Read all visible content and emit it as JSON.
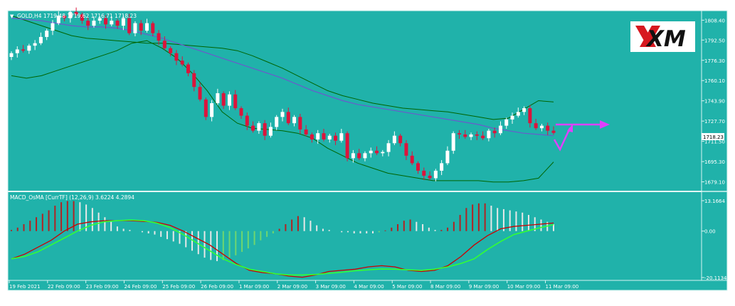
{
  "main_panel": {
    "header": "GOLD,H4  1719.48 1719.62 1716.71 1718.23",
    "y_ticks": [
      "1808.40",
      "1792.50",
      "1776.30",
      "1760.10",
      "1743.90",
      "1727.70",
      "1711.50",
      "1695.30",
      "1679.10"
    ],
    "price_tag": "1718.23"
  },
  "indicator_panel": {
    "header": "MACD_OsMA [CurrTF] (12,26,9) 3.6224 4.2894",
    "y_ticks": [
      "13.1664",
      "0.00",
      "-20.1134"
    ]
  },
  "x_ticks": [
    "19 Feb 2021",
    "22 Feb 09:00",
    "23 Feb 09:00",
    "24 Feb 09:00",
    "25 Feb 09:00",
    "26 Feb 09:00",
    "1 Mar 09:00",
    "2 Mar 09:00",
    "3 Mar 09:00",
    "4 Mar 09:00",
    "5 Mar 09:00",
    "8 Mar 09:00",
    "9 Mar 09:00",
    "10 Mar 09:00",
    "11 Mar 09:00"
  ],
  "logo": {
    "text": "XM",
    "colors": {
      "x_mark": "#d71920",
      "text": "#111111"
    }
  },
  "colors": {
    "background": "#20b2aa",
    "bull_candle": "#ffffff",
    "bear_candle": "#dc143c",
    "bollinger": "#006400",
    "moving_average": "#6a5acd",
    "macd_line": "#cc0000",
    "signal_line": "#33ff33",
    "forecast_arrow": "#e040fb"
  },
  "chart_data": [
    {
      "type": "candlestick",
      "symbol": "GOLD",
      "timeframe": "H4",
      "last": {
        "open": 1719.48,
        "high": 1719.62,
        "low": 1716.71,
        "close": 1718.23
      },
      "ylim": [
        1672,
        1816
      ],
      "x": [
        "19 Feb 2021",
        "22 Feb 09:00",
        "23 Feb 09:00",
        "24 Feb 09:00",
        "25 Feb 09:00",
        "26 Feb 09:00",
        "1 Mar 09:00",
        "2 Mar 09:00",
        "3 Mar 09:00",
        "4 Mar 09:00",
        "5 Mar 09:00",
        "8 Mar 09:00",
        "9 Mar 09:00",
        "10 Mar 09:00",
        "11 Mar 09:00"
      ],
      "closes": [
        1782,
        1785,
        1784,
        1788,
        1790,
        1795,
        1800,
        1806,
        1812,
        1810,
        1815,
        1813,
        1808,
        1804,
        1808,
        1810,
        1805,
        1808,
        1804,
        1810,
        1798,
        1806,
        1800,
        1806,
        1798,
        1792,
        1786,
        1782,
        1776,
        1773,
        1766,
        1755,
        1745,
        1731,
        1742,
        1750,
        1740,
        1749,
        1738,
        1732,
        1724,
        1720,
        1726,
        1716,
        1723,
        1731,
        1735,
        1726,
        1731,
        1721,
        1717,
        1713,
        1718,
        1713,
        1716,
        1712,
        1718,
        1698,
        1702,
        1698,
        1702,
        1704,
        1702,
        1703,
        1710,
        1716,
        1710,
        1700,
        1694,
        1688,
        1684,
        1682,
        1688,
        1694,
        1704,
        1718,
        1717,
        1715,
        1717,
        1716,
        1714,
        1720,
        1718,
        1724,
        1729,
        1732,
        1735,
        1738,
        1726,
        1722,
        1724,
        1720,
        1718.23
      ],
      "bollinger_upper": [
        1812,
        1808,
        1804,
        1800,
        1796,
        1794,
        1793,
        1792,
        1791,
        1790,
        1790,
        1789,
        1788,
        1787,
        1786,
        1784,
        1780,
        1775,
        1770,
        1764,
        1758,
        1752,
        1748,
        1745,
        1742,
        1740,
        1738,
        1737,
        1736,
        1735,
        1733,
        1731,
        1729,
        1730,
        1737,
        1744,
        1743
      ],
      "bollinger_lower": [
        1764,
        1762,
        1764,
        1768,
        1772,
        1776,
        1780,
        1784,
        1790,
        1792,
        1786,
        1778,
        1766,
        1752,
        1735,
        1726,
        1722,
        1721,
        1720,
        1718,
        1714,
        1706,
        1700,
        1694,
        1690,
        1686,
        1684,
        1682,
        1680,
        1680,
        1680,
        1680,
        1679,
        1679,
        1680,
        1682,
        1695
      ],
      "moving_average": [
        1810,
        1809,
        1808,
        1806,
        1804,
        1803,
        1803,
        1802,
        1800,
        1797,
        1794,
        1790,
        1786,
        1782,
        1778,
        1774,
        1770,
        1766,
        1762,
        1757,
        1752,
        1748,
        1744,
        1741,
        1739,
        1737,
        1735,
        1733,
        1731,
        1729,
        1727,
        1725,
        1722,
        1720,
        1718,
        1717,
        1716
      ]
    },
    {
      "type": "bar+line",
      "name": "MACD_OsMA [CurrTF] (12,26,9)",
      "values_shown": [
        3.6224,
        4.2894
      ],
      "ylim": [
        -20.1134,
        13.1664
      ],
      "histogram": [
        0.5,
        1.5,
        3,
        4.5,
        6,
        7.5,
        9,
        11,
        12.5,
        13,
        13,
        12.5,
        11.5,
        10,
        8,
        6,
        4,
        2,
        1,
        0.5,
        0,
        -0.5,
        -1,
        -1.5,
        -2.5,
        -3.5,
        -4.5,
        -5.5,
        -7,
        -8.5,
        -10,
        -11.5,
        -12.5,
        -13,
        -12.5,
        -11.5,
        -10.5,
        -9,
        -7.5,
        -6,
        -4,
        -2.5,
        -1,
        1,
        3,
        5,
        6.5,
        6,
        4.5,
        2.5,
        1,
        0.5,
        0,
        -0.5,
        -0.5,
        -1,
        -1,
        -1,
        -1,
        -0.5,
        0.3,
        1.5,
        3,
        4.5,
        5,
        4,
        3,
        1.5,
        0.5,
        0.5,
        1.5,
        4,
        7,
        10,
        11.5,
        12,
        12,
        11,
        10,
        9.5,
        9,
        8.5,
        8,
        7,
        6,
        5,
        4,
        3
      ],
      "macd": [
        -12,
        -10,
        -7,
        -4,
        0,
        3,
        4,
        4.5,
        4.5,
        4.5,
        4.2,
        3.8,
        2.5,
        0,
        -3,
        -6,
        -10,
        -14,
        -17,
        -18,
        -18.5,
        -19.5,
        -20,
        -19,
        -17.5,
        -17,
        -16.5,
        -15.5,
        -15,
        -15.5,
        -17,
        -17.5,
        -17,
        -15,
        -11,
        -6,
        -2,
        1,
        2,
        2.5,
        3,
        3.5
      ],
      "signal": [
        -12,
        -11,
        -9,
        -6,
        -3,
        0,
        2.5,
        4,
        4.5,
        4.8,
        4.5,
        3.5,
        1.5,
        -1.5,
        -5,
        -8.5,
        -12,
        -14.5,
        -16.5,
        -17.5,
        -18.5,
        -19,
        -19,
        -18.8,
        -18.3,
        -17.8,
        -17.2,
        -16.8,
        -16.4,
        -16.5,
        -16.8,
        -17,
        -16.5,
        -15.5,
        -14,
        -12,
        -8,
        -4.5,
        -1.5,
        0,
        1.5,
        2.8
      ]
    }
  ]
}
